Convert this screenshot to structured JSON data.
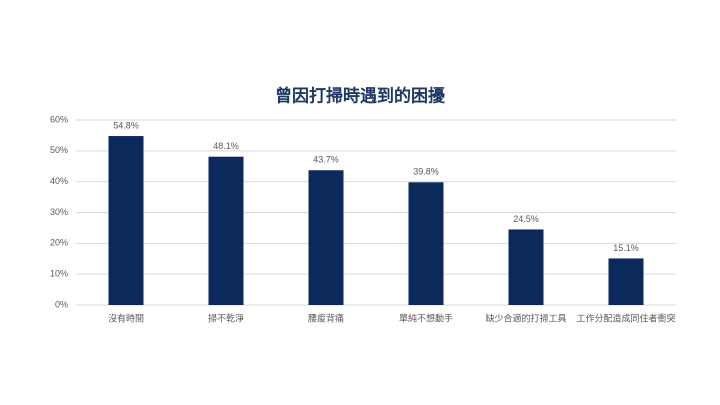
{
  "chart_data": {
    "type": "bar",
    "title": "曾因打掃時遇到的困擾",
    "categories": [
      "沒有時間",
      "掃不乾淨",
      "腰痠背痛",
      "單純不想動手",
      "缺少合適的打掃工具",
      "工作分配造成同住者衝突"
    ],
    "values": [
      54.8,
      48.1,
      43.7,
      39.8,
      24.5,
      15.1
    ],
    "value_labels": [
      "54.8%",
      "48.1%",
      "43.7%",
      "39.8%",
      "24.5%",
      "15.1%"
    ],
    "color": "#0b2a5b",
    "ylim": [
      0,
      60
    ],
    "yticks": [
      {
        "value": 0,
        "label": "0%"
      },
      {
        "value": 10,
        "label": "10%"
      },
      {
        "value": 20,
        "label": "20%"
      },
      {
        "value": 30,
        "label": "30%"
      },
      {
        "value": 40,
        "label": "40%"
      },
      {
        "value": 50,
        "label": "50%"
      },
      {
        "value": 60,
        "label": "60%"
      }
    ],
    "grid": true
  }
}
